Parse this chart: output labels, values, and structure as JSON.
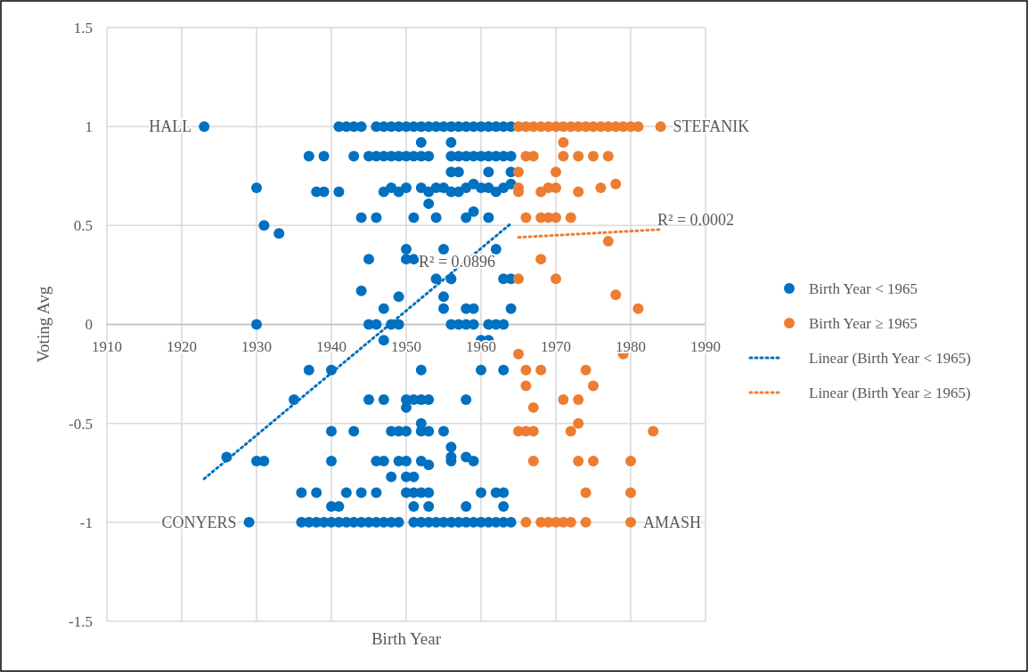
{
  "chart_data": {
    "type": "scatter",
    "xlabel": "Birth Year",
    "ylabel": "Voting Avg",
    "xlim": [
      1910,
      1990
    ],
    "ylim": [
      -1.5,
      1.5
    ],
    "xticks": [
      1910,
      1920,
      1930,
      1940,
      1950,
      1960,
      1970,
      1980,
      1990
    ],
    "yticks": [
      -1.5,
      -1,
      -0.5,
      0,
      0.5,
      1,
      1.5
    ],
    "grid": true,
    "legend": "right",
    "marker": "circle",
    "annotations": [
      {
        "text": "HALL",
        "x": 1923,
        "y": 1
      },
      {
        "text": "STEFANIK",
        "x": 1984,
        "y": 1
      },
      {
        "text": "CONYERS",
        "x": 1929,
        "y": -1
      },
      {
        "text": "AMASH",
        "x": 1980,
        "y": -1
      },
      {
        "text": "R² = 0.0896",
        "x": 1950,
        "y": 0.32
      },
      "R² = 0.0002"
    ],
    "series": [
      {
        "name": "Birth Year < 1965",
        "color": "#0070c0",
        "x": [
          1923,
          1941,
          1942,
          1943,
          1944,
          1946,
          1947,
          1948,
          1949,
          1950,
          1951,
          1952,
          1953,
          1954,
          1955,
          1956,
          1957,
          1958,
          1959,
          1960,
          1961,
          1962,
          1963,
          1964,
          1952,
          1956,
          1937,
          1939,
          1943,
          1945,
          1946,
          1947,
          1948,
          1949,
          1950,
          1951,
          1952,
          1953,
          1956,
          1957,
          1958,
          1959,
          1960,
          1961,
          1962,
          1963,
          1964,
          1956,
          1957,
          1961,
          1964,
          1930,
          1938,
          1939,
          1941,
          1947,
          1948,
          1949,
          1950,
          1952,
          1953,
          1954,
          1955,
          1956,
          1957,
          1958,
          1959,
          1960,
          1961,
          1962,
          1963,
          1964,
          1953,
          1944,
          1946,
          1951,
          1954,
          1958,
          1961,
          1959,
          1931,
          1933,
          1950,
          1955,
          1962,
          1945,
          1950,
          1951,
          1954,
          1956,
          1963,
          1964,
          1944,
          1949,
          1955,
          1947,
          1955,
          1958,
          1959,
          1964,
          1930,
          1945,
          1946,
          1948,
          1949,
          1956,
          1957,
          1958,
          1959,
          1961,
          1962,
          1963,
          1947,
          1960,
          1961,
          1937,
          1940,
          1952,
          1960,
          1963,
          1935,
          1945,
          1947,
          1950,
          1951,
          1952,
          1953,
          1958,
          1950,
          1952,
          1940,
          1943,
          1948,
          1949,
          1950,
          1952,
          1953,
          1955,
          1956,
          1926,
          1956,
          1958,
          1930,
          1931,
          1940,
          1946,
          1947,
          1949,
          1950,
          1952,
          1956,
          1959,
          1953,
          1948,
          1950,
          1951,
          1936,
          1938,
          1942,
          1944,
          1946,
          1950,
          1951,
          1952,
          1953,
          1960,
          1962,
          1963,
          1940,
          1941,
          1951,
          1953,
          1958,
          1963,
          1929,
          1936,
          1937,
          1938,
          1939,
          1940,
          1941,
          1942,
          1943,
          1944,
          1945,
          1946,
          1947,
          1948,
          1949,
          1951,
          1952,
          1953,
          1954,
          1955,
          1956,
          1957,
          1958,
          1959,
          1960,
          1961,
          1962,
          1963,
          1964
        ],
        "values": [
          1,
          1,
          1,
          1,
          1,
          1,
          1,
          1,
          1,
          1,
          1,
          1,
          1,
          1,
          1,
          1,
          1,
          1,
          1,
          1,
          1,
          1,
          1,
          1,
          0.92,
          0.92,
          0.85,
          0.85,
          0.85,
          0.85,
          0.85,
          0.85,
          0.85,
          0.85,
          0.85,
          0.85,
          0.85,
          0.85,
          0.85,
          0.85,
          0.85,
          0.85,
          0.85,
          0.85,
          0.85,
          0.85,
          0.85,
          0.77,
          0.77,
          0.77,
          0.77,
          0.69,
          0.67,
          0.67,
          0.67,
          0.67,
          0.69,
          0.67,
          0.69,
          0.69,
          0.67,
          0.69,
          0.69,
          0.67,
          0.67,
          0.69,
          0.71,
          0.69,
          0.69,
          0.67,
          0.69,
          0.71,
          0.61,
          0.54,
          0.54,
          0.54,
          0.54,
          0.54,
          0.54,
          0.57,
          0.5,
          0.46,
          0.38,
          0.38,
          0.38,
          0.33,
          0.33,
          0.33,
          0.23,
          0.23,
          0.23,
          0.23,
          0.17,
          0.14,
          0.14,
          0.08,
          0.08,
          0.08,
          0.08,
          0.08,
          0,
          0,
          0,
          0,
          0,
          0,
          0,
          0,
          0,
          0,
          0,
          0,
          -0.08,
          -0.08,
          -0.08,
          -0.23,
          -0.23,
          -0.23,
          -0.23,
          -0.23,
          -0.38,
          -0.38,
          -0.38,
          -0.38,
          -0.38,
          -0.38,
          -0.38,
          -0.38,
          -0.42,
          -0.5,
          -0.54,
          -0.54,
          -0.54,
          -0.54,
          -0.54,
          -0.54,
          -0.54,
          -0.54,
          -0.62,
          -0.67,
          -0.67,
          -0.67,
          -0.69,
          -0.69,
          -0.69,
          -0.69,
          -0.69,
          -0.69,
          -0.69,
          -0.69,
          -0.69,
          -0.69,
          -0.71,
          -0.77,
          -0.77,
          -0.77,
          -0.85,
          -0.85,
          -0.85,
          -0.85,
          -0.85,
          -0.85,
          -0.85,
          -0.85,
          -0.85,
          -0.85,
          -0.85,
          -0.85,
          -0.92,
          -0.92,
          -0.92,
          -0.92,
          -0.92,
          -0.92,
          -1,
          -1,
          -1,
          -1,
          -1,
          -1,
          -1,
          -1,
          -1,
          -1,
          -1,
          -1,
          -1,
          -1,
          -1,
          -1,
          -1,
          -1,
          -1,
          -1,
          -1,
          -1,
          -1,
          -1,
          -1,
          -1,
          -1,
          -1,
          -1
        ]
      },
      {
        "name": "Birth Year ≥  1965",
        "color": "#ed7d31",
        "x": [
          1965,
          1966,
          1967,
          1968,
          1969,
          1970,
          1971,
          1972,
          1973,
          1974,
          1975,
          1976,
          1977,
          1978,
          1979,
          1980,
          1981,
          1984,
          1971,
          1966,
          1967,
          1971,
          1973,
          1975,
          1977,
          1965,
          1970,
          1965,
          1969,
          1970,
          1976,
          1978,
          1965,
          1968,
          1973,
          1966,
          1968,
          1969,
          1970,
          1972,
          1977,
          1968,
          1965,
          1970,
          1978,
          1981,
          1965,
          1979,
          1966,
          1968,
          1974,
          1966,
          1975,
          1971,
          1973,
          1967,
          1973,
          1965,
          1966,
          1967,
          1972,
          1983,
          1967,
          1973,
          1975,
          1980,
          1974,
          1980,
          1966,
          1968,
          1969,
          1970,
          1971,
          1972,
          1974,
          1980
        ],
        "values": [
          1,
          1,
          1,
          1,
          1,
          1,
          1,
          1,
          1,
          1,
          1,
          1,
          1,
          1,
          1,
          1,
          1,
          1,
          0.92,
          0.85,
          0.85,
          0.85,
          0.85,
          0.85,
          0.85,
          0.77,
          0.77,
          0.69,
          0.69,
          0.69,
          0.69,
          0.71,
          0.67,
          0.67,
          0.67,
          0.54,
          0.54,
          0.54,
          0.54,
          0.54,
          0.42,
          0.33,
          0.23,
          0.23,
          0.15,
          0.08,
          -0.15,
          -0.15,
          -0.23,
          -0.23,
          -0.23,
          -0.31,
          -0.31,
          -0.38,
          -0.38,
          -0.42,
          -0.5,
          -0.54,
          -0.54,
          -0.54,
          -0.54,
          -0.54,
          -0.69,
          -0.69,
          -0.69,
          -0.69,
          -0.85,
          -0.85,
          -1,
          -1,
          -1,
          -1,
          -1,
          -1,
          -1,
          -1
        ]
      },
      {
        "name": "Linear (Birth Year < 1965)",
        "type": "line",
        "color": "#0070c0",
        "marker": "none",
        "line_style": "dotted",
        "x": [
          1923,
          1964
        ],
        "values": [
          -0.78,
          0.51
        ]
      },
      {
        "name": "Linear (Birth Year ≥  1965)",
        "type": "line",
        "color": "#ed7d31",
        "marker": "none",
        "line_style": "dotted",
        "x": [
          1965,
          1984
        ],
        "values": [
          0.44,
          0.48
        ]
      }
    ]
  }
}
